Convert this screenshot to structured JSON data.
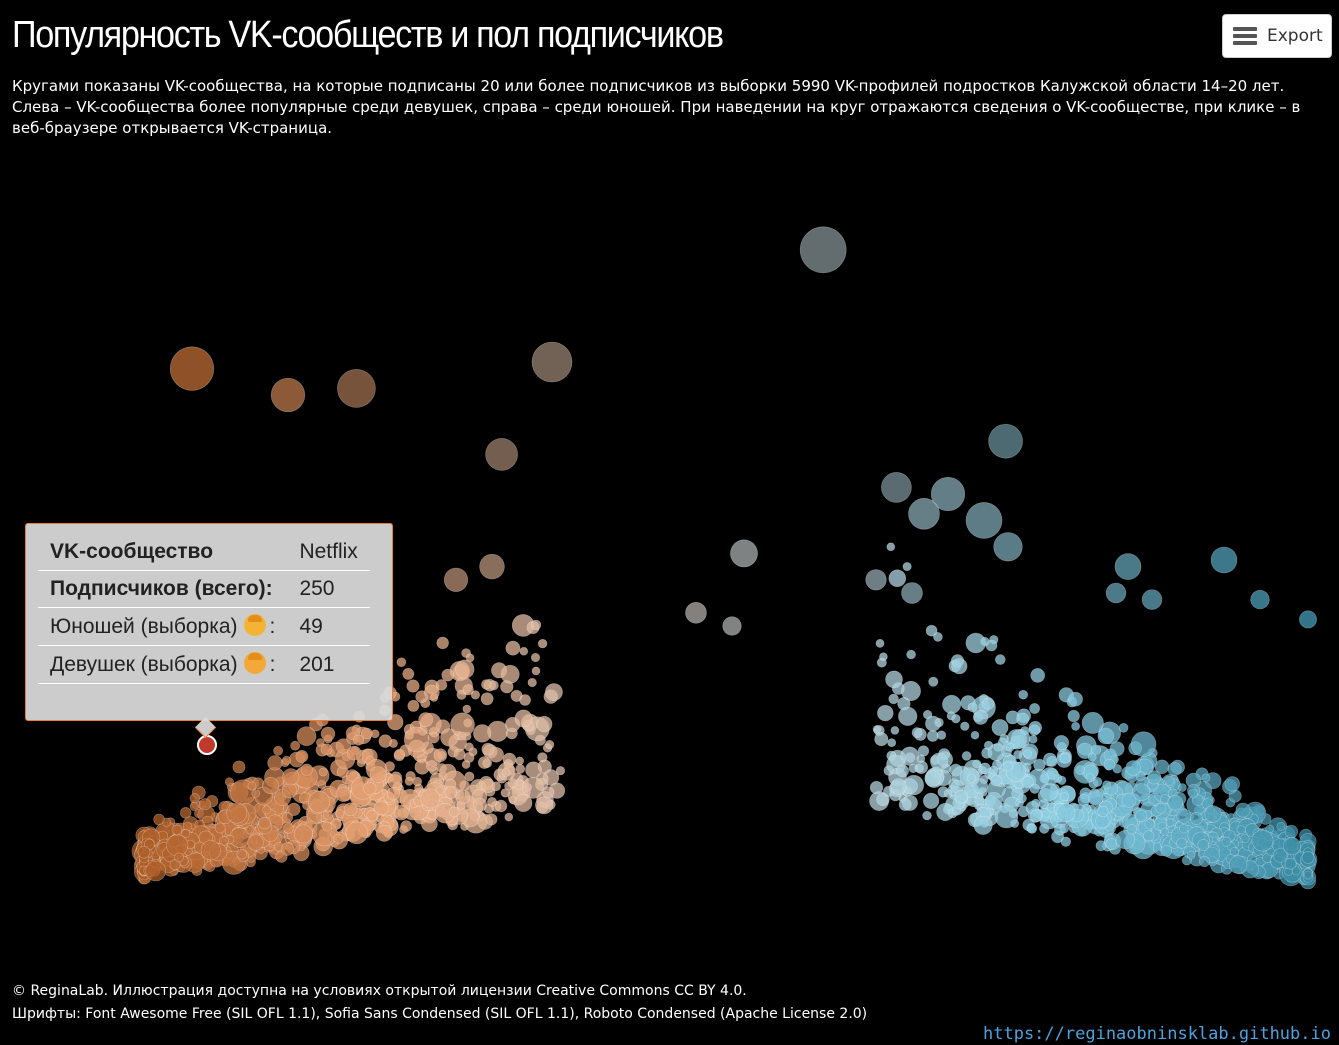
{
  "header": {
    "title": "Популярность VK-сообществ и пол подписчиков",
    "subtitle": "Кругами показаны VK-сообщества, на которые подписаны 20 или более подписчиков из выборки 5990 VK-профилей подростков Калужской области 14–20 лет. Слева – VK-сообщества более популярные среди девушек, справа – среди юношей. При наведении на круг отражаются сведения о VK-сообществе, при клике – в веб-браузере открывается VK-страница.",
    "export_label": "Export"
  },
  "tooltip": {
    "rows": [
      {
        "label": "VK-сообщество",
        "value": "Netflix"
      },
      {
        "label": "Подписчиков (всего):",
        "value": "250"
      },
      {
        "label": "Юношей (выборка)",
        "value": "49",
        "emoji": "boy-emoji"
      },
      {
        "label": "Девушек (выборка)",
        "value": "201",
        "emoji": "girl-emoji"
      }
    ],
    "suffix": ":"
  },
  "footer": {
    "credit_line1": "© ReginaLab. Иллюстрация доступна на условиях открытой лицензии Creative Commons CC BY 4.0.",
    "credit_line2": "Шрифты: Font Awesome Free (SIL OFL 1.1), Sofia Sans Condensed (SIL OFL 1.1), Roboto Condensed (Apache License 2.0)",
    "link": "https://reginaobninsklab.github.io"
  },
  "colors": {
    "background": "#000000",
    "female_side": "#f07c2e",
    "neutral": "#d9d9d9",
    "male_side": "#4fc3e8",
    "highlight": "#c0392b"
  },
  "chart_data": {
    "type": "scatter",
    "encoding": "bubble",
    "title": "",
    "xlabel": "",
    "ylabel": "",
    "highlighted": {
      "name": "Netflix",
      "total": 250,
      "male": 49,
      "female": 201
    },
    "points": [
      {
        "x": 0.06,
        "y": 0.79,
        "s": 290
      },
      {
        "x": 0.72,
        "y": 0.56,
        "s": 260
      },
      {
        "x": 0.69,
        "y": 0.6,
        "s": 250
      },
      {
        "x": 0.67,
        "y": 0.57,
        "s": 240
      },
      {
        "x": 0.74,
        "y": 0.52,
        "s": 230
      },
      {
        "x": 0.52,
        "y": 0.51,
        "s": 225
      },
      {
        "x": 0.84,
        "y": 0.49,
        "s": 220
      },
      {
        "x": 0.92,
        "y": 0.5,
        "s": 220
      },
      {
        "x": 0.31,
        "y": 0.49,
        "s": 215
      },
      {
        "x": 0.28,
        "y": 0.47,
        "s": 210
      },
      {
        "x": 0.48,
        "y": 0.42,
        "s": 200
      },
      {
        "x": 0.66,
        "y": 0.45,
        "s": 200
      },
      {
        "x": 0.63,
        "y": 0.47,
        "s": 198
      },
      {
        "x": 0.83,
        "y": 0.45,
        "s": 195
      },
      {
        "x": 0.86,
        "y": 0.44,
        "s": 195
      },
      {
        "x": 0.95,
        "y": 0.44,
        "s": 190
      },
      {
        "x": 0.51,
        "y": 0.4,
        "s": 190
      },
      {
        "x": 0.99,
        "y": 0.41,
        "s": 185
      },
      {
        "x": 0.14,
        "y": 0.75,
        "s": 250
      }
    ]
  }
}
